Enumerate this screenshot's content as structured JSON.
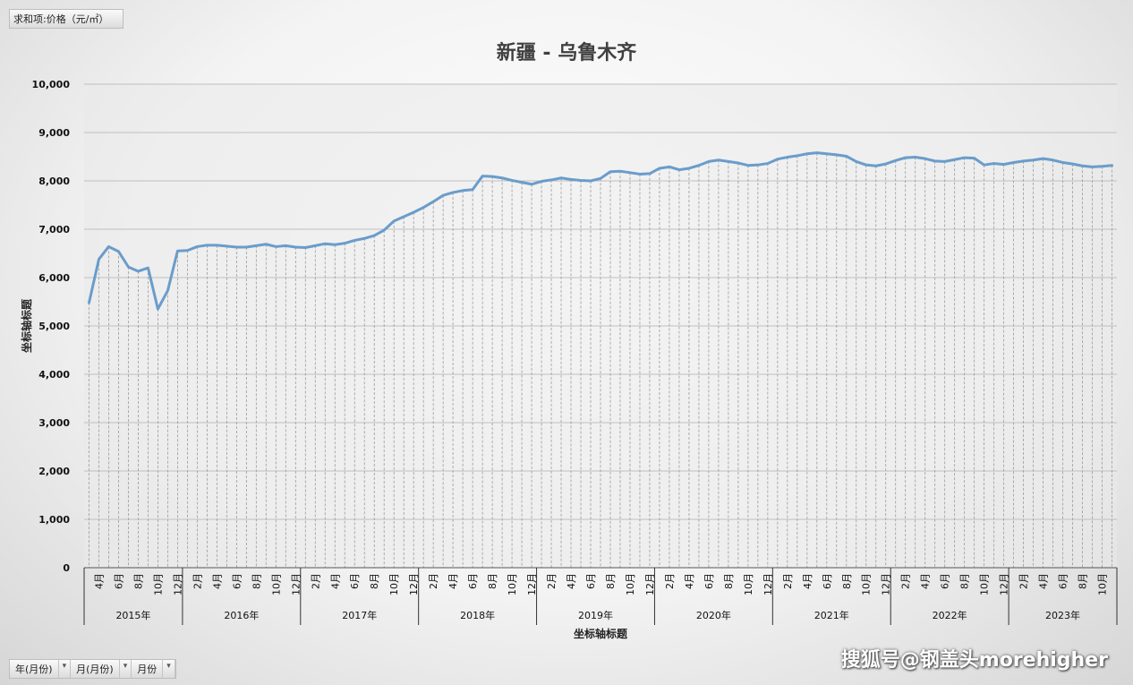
{
  "value_field": "求和项:价格（元/㎡）",
  "axis_fields": [
    "年(月份)",
    "月(月份)",
    "月份"
  ],
  "watermark": "搜狐号@钢盖头morehigher",
  "chart_data": {
    "type": "line",
    "title": "新疆 - 乌鲁木齐",
    "xlabel": "坐标轴标题",
    "ylabel": "坐标轴标题",
    "ylim": [
      0,
      10000
    ],
    "yticks": [
      0,
      1000,
      2000,
      3000,
      4000,
      5000,
      6000,
      7000,
      8000,
      9000,
      10000
    ],
    "ytick_labels": [
      "0",
      "1,000",
      "2,000",
      "3,000",
      "4,000",
      "5,000",
      "6,000",
      "7,000",
      "8,000",
      "9,000",
      "10,000"
    ],
    "month_ticks": [
      "2月",
      "4月",
      "6月",
      "8月",
      "10月",
      "12月"
    ],
    "years": [
      {
        "label": "2015年",
        "start_month": 3
      },
      {
        "label": "2016年",
        "start_month": 1
      },
      {
        "label": "2017年",
        "start_month": 1
      },
      {
        "label": "2018年",
        "start_month": 1
      },
      {
        "label": "2019年",
        "start_month": 1
      },
      {
        "label": "2020年",
        "start_month": 1
      },
      {
        "label": "2021年",
        "start_month": 1
      },
      {
        "label": "2022年",
        "start_month": 1
      },
      {
        "label": "2023年",
        "start_month": 1
      }
    ],
    "series": [
      {
        "values": [
          5480,
          6380,
          6640,
          6540,
          6220,
          6130,
          6200,
          5350,
          5730,
          6550,
          6560,
          6640,
          6670,
          6670,
          6650,
          6630,
          6630,
          6660,
          6690,
          6640,
          6660,
          6630,
          6620,
          6660,
          6700,
          6680,
          6710,
          6770,
          6810,
          6870,
          6980,
          7170,
          7260,
          7350,
          7450,
          7570,
          7700,
          7760,
          7800,
          7820,
          8100,
          8090,
          8060,
          8010,
          7970,
          7930,
          7990,
          8020,
          8060,
          8030,
          8010,
          8000,
          8050,
          8190,
          8200,
          8170,
          8140,
          8150,
          8260,
          8290,
          8230,
          8260,
          8320,
          8400,
          8430,
          8400,
          8370,
          8320,
          8330,
          8360,
          8450,
          8490,
          8520,
          8560,
          8580,
          8560,
          8540,
          8510,
          8400,
          8330,
          8310,
          8350,
          8420,
          8480,
          8490,
          8460,
          8410,
          8400,
          8440,
          8480,
          8470,
          8330,
          8360,
          8340,
          8380,
          8410,
          8430,
          8460,
          8430,
          8380,
          8350,
          8310,
          8290,
          8300,
          8320
        ]
      }
    ]
  }
}
